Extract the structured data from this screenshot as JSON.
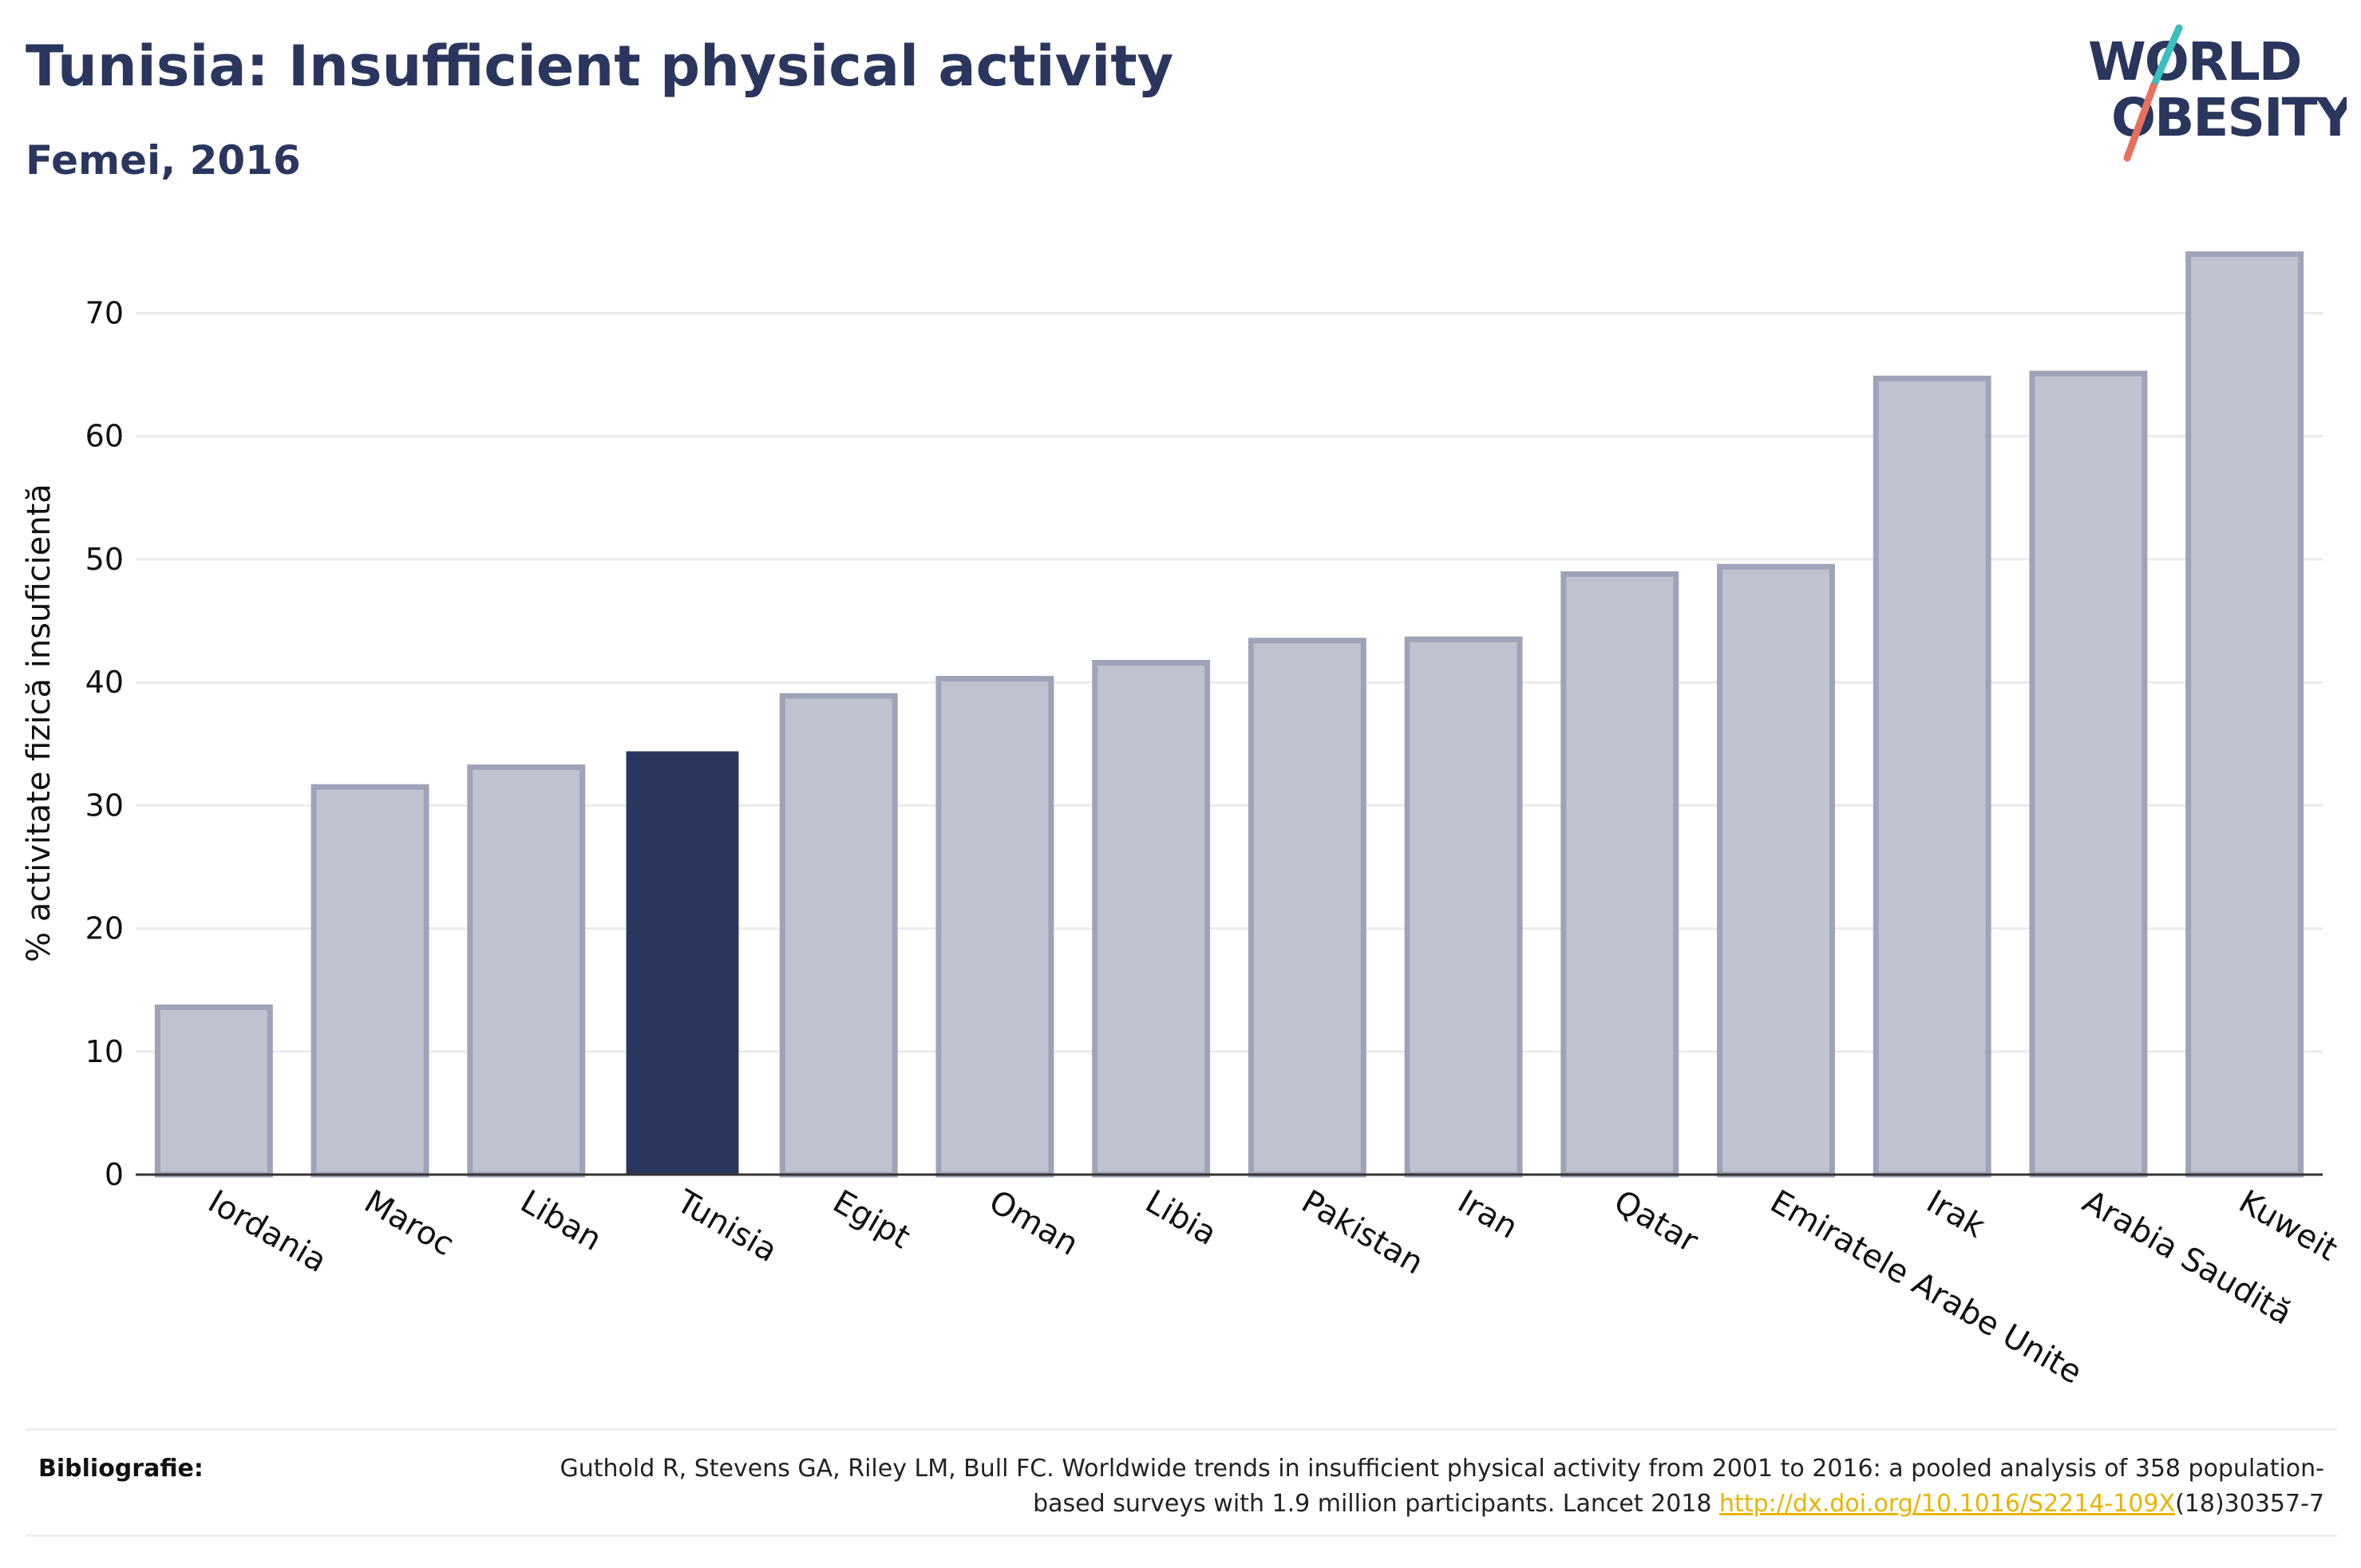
{
  "header": {
    "title": "Tunisia: Insufficient physical activity",
    "subtitle": "Femei, 2016"
  },
  "logo": {
    "line1": "WORLD",
    "line2": "OBESITY",
    "colors": {
      "text": "#2b365e",
      "slash_teal": "#3bbfbf",
      "slash_coral": "#e8705f"
    }
  },
  "chart_data": {
    "type": "bar",
    "ylabel": "% activitate fizică insuficientă",
    "xlabel": "",
    "ylim": [
      0,
      76
    ],
    "yticks": [
      0,
      10,
      20,
      30,
      40,
      50,
      60,
      70
    ],
    "grid": true,
    "highlight": "Tunisia",
    "colors": {
      "bar": "#bfc2cf",
      "bar_border": "#9ea3b8",
      "highlight": "#2b365e",
      "grid": "#ebebeb",
      "axis": "#333333"
    },
    "categories": [
      "Iordania",
      "Maroc",
      "Liban",
      "Tunisia",
      "Egipt",
      "Oman",
      "Libia",
      "Pakistan",
      "Iran",
      "Qatar",
      "Emiratele Arabe Unite",
      "Irak",
      "Arabia Saudită",
      "Kuweit"
    ],
    "values": [
      13.6,
      31.5,
      33.1,
      34.4,
      38.9,
      40.3,
      41.6,
      43.4,
      43.5,
      48.8,
      49.4,
      64.7,
      65.1,
      74.8
    ]
  },
  "footer": {
    "label": "Bibliografie:",
    "citation_part1": "Guthold R, Stevens GA, Riley LM, Bull FC. Worldwide trends in insufficient physical activity from 2001 to 2016: a pooled analysis of 358 population-based surveys with 1.9 million participants. Lancet 2018 ",
    "citation_link": "http://dx.doi.org/10.1016/S2214-109X",
    "citation_part2": "(18)30357-7"
  }
}
